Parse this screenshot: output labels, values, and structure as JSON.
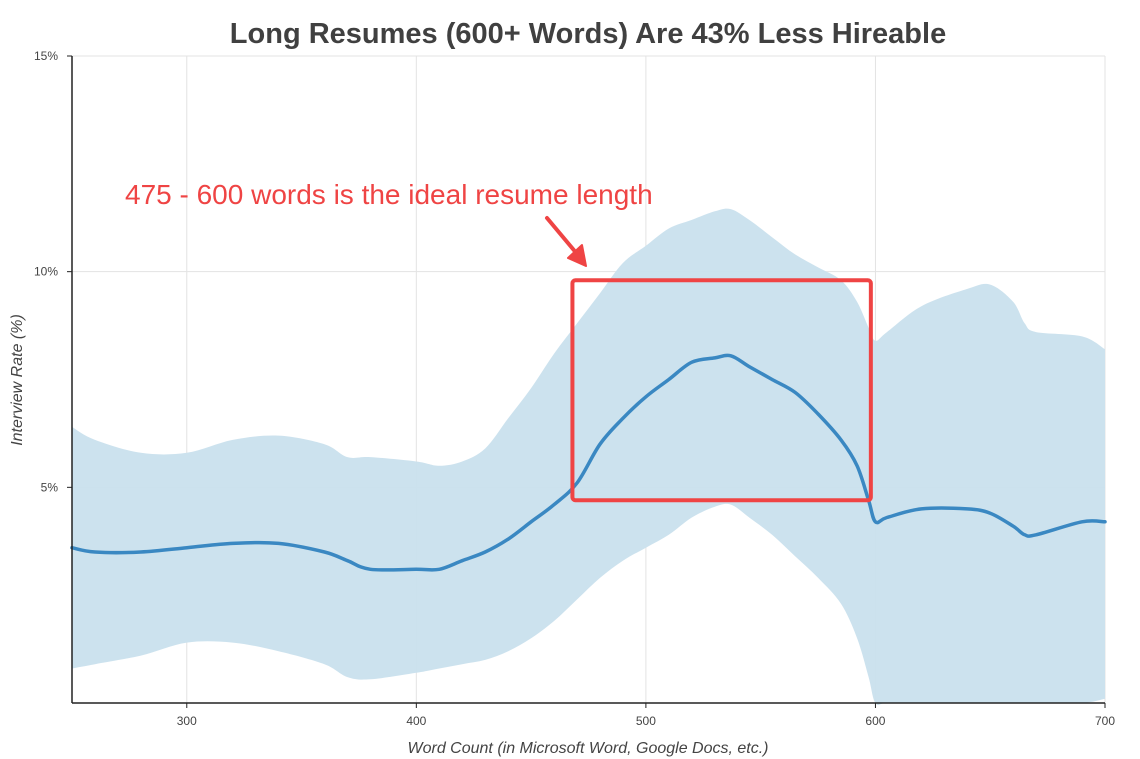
{
  "chart_data": {
    "type": "area",
    "title": "Long Resumes (600+ Words) Are 43% Less Hireable",
    "xlabel": "Word Count (in Microsoft Word, Google Docs, etc.)",
    "ylabel": "Interview Rate (%)",
    "xlim": [
      250,
      700
    ],
    "ylim": [
      0,
      15
    ],
    "x_ticks": [
      300,
      400,
      500,
      600,
      700
    ],
    "x_tick_labels": [
      "300",
      "400",
      "500",
      "600",
      "700"
    ],
    "y_ticks": [
      5,
      10,
      15
    ],
    "y_tick_labels": [
      "5%",
      "10%",
      "15%"
    ],
    "grid": true,
    "colors": {
      "line": "#3a88c2",
      "band": "#c9e0ed",
      "annotation": "#ef4444"
    },
    "series": [
      {
        "values": {
          "x": [
            250,
            260,
            280,
            300,
            320,
            340,
            360,
            370,
            380,
            400,
            410,
            420,
            430,
            440,
            450,
            460,
            470,
            480,
            490,
            500,
            510,
            520,
            530,
            537,
            545,
            555,
            565,
            575,
            585,
            592,
            597,
            600,
            605,
            620,
            640,
            650,
            660,
            665,
            670,
            690,
            700
          ],
          "y": [
            3.6,
            3.5,
            3.5,
            3.6,
            3.7,
            3.7,
            3.5,
            3.3,
            3.1,
            3.1,
            3.1,
            3.3,
            3.5,
            3.8,
            4.2,
            4.6,
            5.1,
            6.0,
            6.6,
            7.1,
            7.5,
            7.9,
            8.0,
            8.05,
            7.8,
            7.5,
            7.2,
            6.7,
            6.1,
            5.5,
            4.7,
            4.2,
            4.3,
            4.5,
            4.5,
            4.4,
            4.1,
            3.9,
            3.9,
            4.2,
            4.2
          ]
        }
      }
    ],
    "band": {
      "x": [
        250,
        260,
        280,
        300,
        320,
        340,
        360,
        370,
        380,
        400,
        410,
        420,
        430,
        440,
        450,
        460,
        470,
        480,
        490,
        500,
        510,
        520,
        530,
        537,
        545,
        555,
        565,
        575,
        585,
        592,
        597,
        600,
        605,
        620,
        640,
        650,
        660,
        665,
        670,
        690,
        700
      ],
      "upper": [
        6.4,
        6.1,
        5.8,
        5.8,
        6.1,
        6.2,
        6.0,
        5.7,
        5.7,
        5.6,
        5.5,
        5.6,
        5.9,
        6.6,
        7.3,
        8.1,
        8.8,
        9.5,
        10.2,
        10.6,
        11.0,
        11.2,
        11.4,
        11.45,
        11.2,
        10.8,
        10.4,
        10.1,
        9.8,
        9.3,
        8.7,
        8.4,
        8.6,
        9.2,
        9.6,
        9.7,
        9.3,
        8.8,
        8.6,
        8.5,
        8.2
      ],
      "lower": [
        0.8,
        0.9,
        1.1,
        1.4,
        1.4,
        1.2,
        0.9,
        0.6,
        0.55,
        0.7,
        0.8,
        0.9,
        1.0,
        1.2,
        1.5,
        1.9,
        2.4,
        2.9,
        3.3,
        3.6,
        3.9,
        4.3,
        4.55,
        4.6,
        4.3,
        3.9,
        3.4,
        2.9,
        2.3,
        1.5,
        0.6,
        0.0,
        0.0,
        0.0,
        0.0,
        0.0,
        0.0,
        0.0,
        0.0,
        0.0,
        0.1
      ]
    },
    "annotations": [
      {
        "text": "475 - 600 words is the ideal resume length",
        "box_x": [
          468,
          598
        ],
        "box_y": [
          4.7,
          9.8
        ]
      }
    ]
  }
}
